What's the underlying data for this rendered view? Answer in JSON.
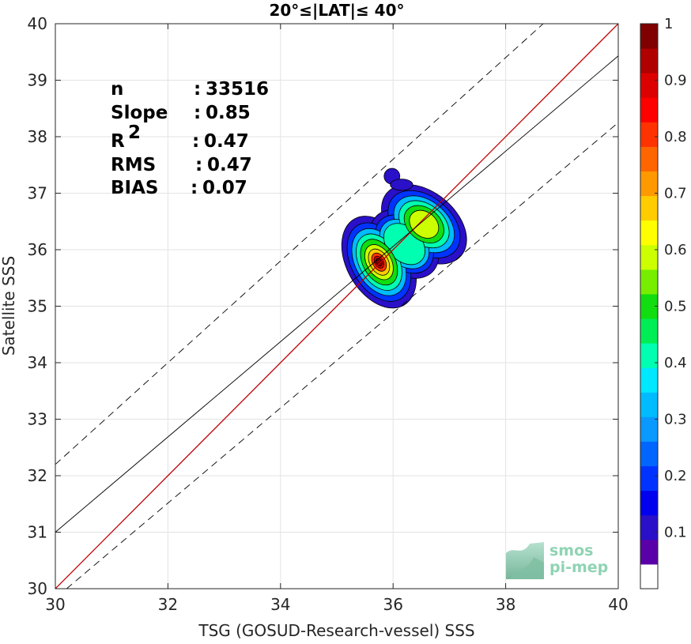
{
  "chart_data": {
    "type": "scatter",
    "title": "20°≤|LAT|≤ 40°",
    "xlabel": "TSG (GOSUD-Research-vessel) SSS",
    "ylabel": "Satellite SSS",
    "xlim": [
      30,
      40
    ],
    "ylim": [
      30,
      40
    ],
    "xticks": [
      "30",
      "32",
      "34",
      "36",
      "38",
      "40"
    ],
    "yticks": [
      "30",
      "31",
      "32",
      "33",
      "34",
      "35",
      "36",
      "37",
      "38",
      "39",
      "40"
    ],
    "grid": true,
    "stats": [
      {
        "label": "n",
        "sep": ":",
        "value": "33516"
      },
      {
        "label": "Slope",
        "sep": ":",
        "value": "0.85"
      },
      {
        "label": "R",
        "sup": "2",
        "sep": ":",
        "value": "0.47"
      },
      {
        "label": "RMS",
        "sep": ":",
        "value": "0.47"
      },
      {
        "label": "BIAS",
        "sep": ":",
        "value": "0.07"
      }
    ],
    "lines": {
      "identity": {
        "slope": 1,
        "intercept": 0,
        "color": "#c00000"
      },
      "fit": {
        "x": [
          30,
          40
        ],
        "y": [
          31.0,
          39.43
        ],
        "color": "#000000"
      },
      "envelope_upper": {
        "x": [
          30,
          40
        ],
        "y": [
          32.2,
          41.2
        ]
      },
      "envelope_lower": {
        "x": [
          30.2,
          40
        ],
        "y": [
          30,
          38.25
        ]
      }
    },
    "density": {
      "type": "contourf",
      "levels": [
        0.05,
        0.1,
        0.15,
        0.2,
        0.25,
        0.3,
        0.35,
        0.4,
        0.45,
        0.5,
        0.55,
        0.6,
        0.65,
        0.7,
        0.75,
        0.8,
        0.85,
        0.9,
        0.95,
        1.0
      ],
      "peaks": [
        {
          "x": 35.75,
          "y": 35.88,
          "value": 1.0
        },
        {
          "x": 36.55,
          "y": 36.45,
          "value": 0.65
        }
      ]
    },
    "colorbar": {
      "range": [
        0,
        1
      ],
      "ticks": [
        "0.1",
        "0.2",
        "0.3",
        "0.4",
        "0.5",
        "0.6",
        "0.7",
        "0.8",
        "0.9",
        "1"
      ],
      "colors": [
        "#ffffff",
        "#5a00a8",
        "#2a10c8",
        "#0000ee",
        "#0033ff",
        "#0066ff",
        "#0a99ff",
        "#00bbff",
        "#00e8ff",
        "#00ffb0",
        "#00ee55",
        "#11dd11",
        "#77ee00",
        "#ccff00",
        "#ffff00",
        "#ffcc00",
        "#ff9900",
        "#ff6600",
        "#ff3300",
        "#ff0000",
        "#dd0000",
        "#b00000",
        "#800000"
      ]
    }
  },
  "logo": {
    "line1": "smos",
    "line2": "pi-mep"
  }
}
